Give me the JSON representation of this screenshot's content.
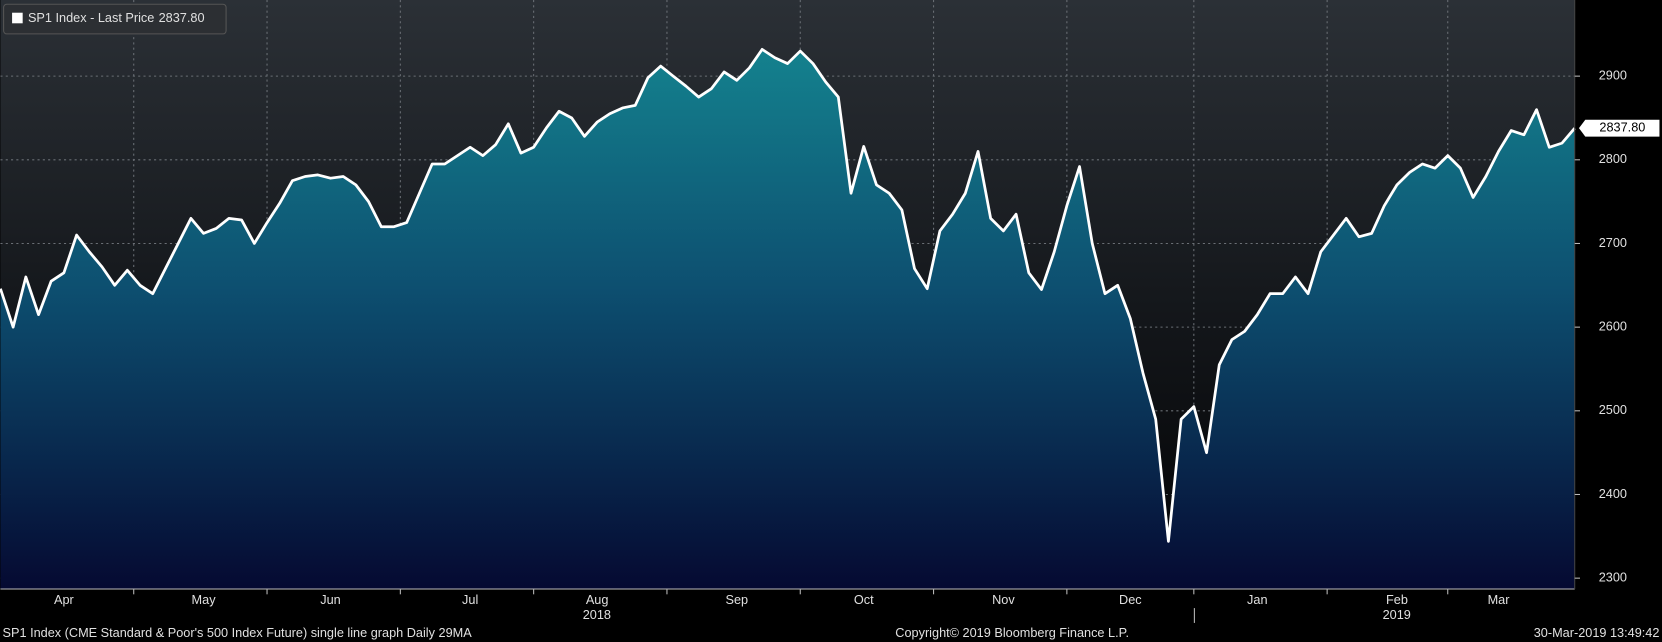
{
  "chart_data": {
    "type": "area-line",
    "series": [
      {
        "name": "SP1 Index - Last Price",
        "color": "#ffffff",
        "values": [
          2646,
          2600,
          2660,
          2615,
          2655,
          2665,
          2710,
          2690,
          2672,
          2650,
          2668,
          2650,
          2640,
          2670,
          2700,
          2730,
          2712,
          2718,
          2730,
          2728,
          2700,
          2725,
          2748,
          2775,
          2780,
          2782,
          2778,
          2780,
          2770,
          2750,
          2720,
          2720,
          2725,
          2760,
          2795,
          2795,
          2805,
          2815,
          2805,
          2818,
          2843,
          2808,
          2815,
          2838,
          2858,
          2850,
          2828,
          2845,
          2855,
          2862,
          2865,
          2898,
          2912,
          2900,
          2888,
          2875,
          2885,
          2905,
          2895,
          2910,
          2932,
          2922,
          2915,
          2930,
          2915,
          2893,
          2875,
          2760,
          2816,
          2770,
          2760,
          2740,
          2670,
          2646,
          2715,
          2735,
          2760,
          2810,
          2730,
          2715,
          2735,
          2665,
          2645,
          2690,
          2745,
          2792,
          2700,
          2640,
          2650,
          2610,
          2545,
          2490,
          2344,
          2490,
          2505,
          2450,
          2555,
          2585,
          2595,
          2615,
          2640,
          2640,
          2660,
          2640,
          2690,
          2710,
          2730,
          2708,
          2712,
          2745,
          2770,
          2785,
          2795,
          2790,
          2805,
          2790,
          2755,
          2780,
          2810,
          2835,
          2830,
          2860,
          2815,
          2820,
          2837.8
        ],
        "value_labels": [
          null,
          null,
          null,
          null,
          null,
          null,
          null,
          null,
          null,
          null,
          null,
          null,
          null,
          null,
          null,
          null,
          null,
          null,
          null,
          null,
          null,
          null,
          null,
          null,
          null,
          null,
          null,
          null,
          null,
          null,
          null,
          null,
          null,
          null,
          null,
          null,
          null,
          null,
          null,
          null,
          null,
          null,
          null,
          null,
          null,
          null,
          null,
          null,
          null,
          null,
          null,
          null,
          null,
          null,
          null,
          null,
          null,
          null,
          null,
          null,
          null,
          null,
          null,
          null,
          null,
          null,
          null,
          null,
          null,
          null,
          null,
          null,
          null,
          null,
          null,
          null,
          null,
          null,
          null,
          null,
          null,
          null,
          null,
          null,
          null,
          null,
          null,
          null,
          null,
          null,
          null,
          null,
          null,
          null,
          null,
          null,
          null,
          null,
          null,
          null,
          null,
          null,
          null,
          null,
          null,
          null,
          null,
          null,
          null,
          null,
          null,
          null,
          null,
          null,
          null,
          null,
          null,
          null,
          null,
          null,
          null,
          null,
          null,
          null,
          "2837.80"
        ]
      }
    ],
    "categories": [
      null,
      null,
      null,
      null,
      null,
      "Apr",
      null,
      null,
      null,
      null,
      null,
      null,
      null,
      null,
      null,
      null,
      "May",
      null,
      null,
      null,
      null,
      null,
      null,
      null,
      null,
      null,
      "Jun",
      null,
      null,
      null,
      null,
      null,
      null,
      null,
      null,
      null,
      null,
      "Jul",
      null,
      null,
      null,
      null,
      null,
      null,
      null,
      null,
      null,
      "Aug",
      null,
      null,
      null,
      null,
      null,
      null,
      null,
      null,
      null,
      null,
      "Sep",
      null,
      null,
      null,
      null,
      null,
      null,
      null,
      null,
      null,
      "Oct",
      null,
      null,
      null,
      null,
      null,
      null,
      null,
      null,
      null,
      null,
      "Nov",
      null,
      null,
      null,
      null,
      null,
      null,
      null,
      null,
      null,
      "Dec",
      null,
      null,
      null,
      null,
      null,
      null,
      null,
      null,
      null,
      "Jan",
      null,
      null,
      null,
      null,
      null,
      null,
      null,
      null,
      null,
      null,
      "Feb",
      null,
      null,
      null,
      null,
      null,
      null,
      null,
      "Mar",
      null,
      null,
      null,
      null,
      null,
      null
    ],
    "years": [
      "2018",
      "2019"
    ],
    "ylim": [
      2287,
      2991
    ],
    "yticks": [
      2300,
      2400,
      2500,
      2600,
      2700,
      2800,
      2900
    ],
    "grid": true,
    "footer": {
      "description": "SP1 Index (CME Standard & Poor's 500 Index Future) single line graph  Daily 29MA",
      "copyright": "Copyright© 2019 Bloomberg Finance L.P.",
      "timestamp": "30-Mar-2019 13:49:42"
    }
  }
}
